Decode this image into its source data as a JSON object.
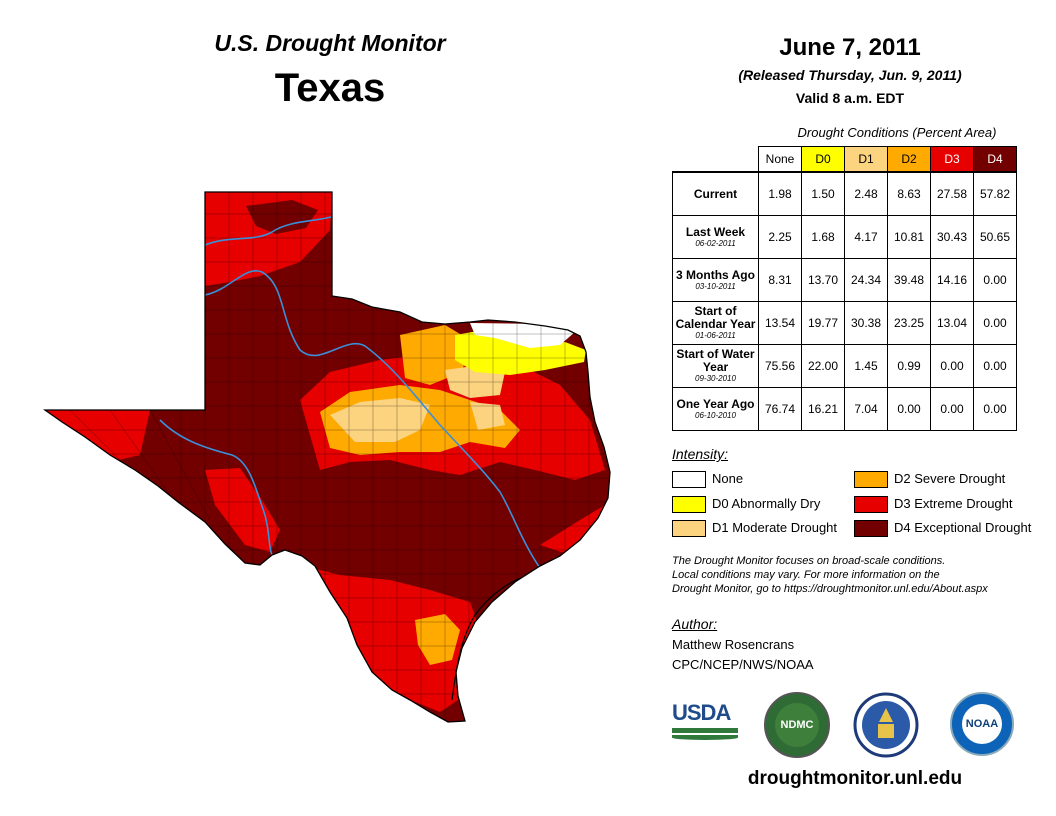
{
  "header": {
    "monitor_title": "U.S. Drought Monitor",
    "region": "Texas",
    "date": "June 7, 2011",
    "released": "(Released Thursday, Jun. 9, 2011)",
    "valid": "Valid 8 a.m. EDT"
  },
  "table": {
    "title": "Drought Conditions (Percent Area)",
    "columns": [
      {
        "label": "None",
        "color": "#ffffff"
      },
      {
        "label": "D0",
        "color": "#ffff00"
      },
      {
        "label": "D1",
        "color": "#fcd37f"
      },
      {
        "label": "D2",
        "color": "#ffaa00"
      },
      {
        "label": "D3",
        "color": "#e60000"
      },
      {
        "label": "D4",
        "color": "#730000"
      }
    ],
    "rows": [
      {
        "label": "Current",
        "sub": "",
        "values": [
          "1.98",
          "1.50",
          "2.48",
          "8.63",
          "27.58",
          "57.82"
        ]
      },
      {
        "label": "Last Week",
        "sub": "06-02-2011",
        "values": [
          "2.25",
          "1.68",
          "4.17",
          "10.81",
          "30.43",
          "50.65"
        ]
      },
      {
        "label": "3 Months Ago",
        "sub": "03-10-2011",
        "values": [
          "8.31",
          "13.70",
          "24.34",
          "39.48",
          "14.16",
          "0.00"
        ]
      },
      {
        "label": "Start of Calendar Year",
        "sub": "01-06-2011",
        "values": [
          "13.54",
          "19.77",
          "30.38",
          "23.25",
          "13.04",
          "0.00"
        ]
      },
      {
        "label": "Start of Water Year",
        "sub": "09-30-2010",
        "values": [
          "75.56",
          "22.00",
          "1.45",
          "0.99",
          "0.00",
          "0.00"
        ]
      },
      {
        "label": "One Year Ago",
        "sub": "06-10-2010",
        "values": [
          "76.74",
          "16.21",
          "7.04",
          "0.00",
          "0.00",
          "0.00"
        ]
      }
    ]
  },
  "legend": {
    "title": "Intensity:",
    "items": [
      {
        "label": "None",
        "color": "#ffffff"
      },
      {
        "label": "D0 Abnormally Dry",
        "color": "#ffff00"
      },
      {
        "label": "D1 Moderate Drought",
        "color": "#fcd37f"
      },
      {
        "label": "D2 Severe Drought",
        "color": "#ffaa00"
      },
      {
        "label": "D3 Extreme Drought",
        "color": "#e60000"
      },
      {
        "label": "D4 Exceptional Drought",
        "color": "#730000"
      }
    ]
  },
  "note": {
    "line1": "The Drought Monitor focuses on broad-scale conditions.",
    "line2": "Local conditions may vary. For more information on the",
    "line3": "Drought Monitor, go to https://droughtmonitor.unl.edu/About.aspx"
  },
  "author": {
    "title": "Author:",
    "name": "Matthew Rosencrans",
    "org": "CPC/NCEP/NWS/NOAA"
  },
  "logos": {
    "usda": "USDA",
    "ndmc": "NDMC",
    "noaa": "NOAA"
  },
  "footer_url": "droughtmonitor.unl.edu"
}
